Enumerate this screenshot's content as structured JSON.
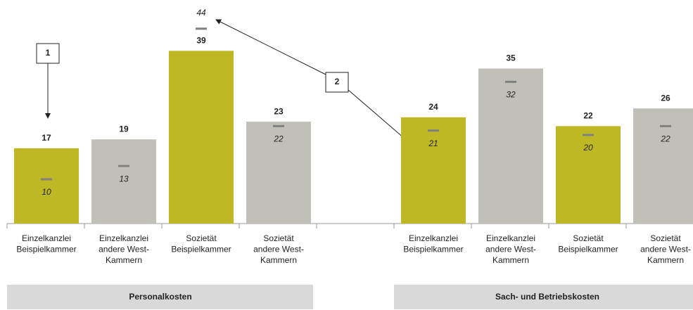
{
  "chart_data": {
    "type": "bar",
    "ylim": [
      0,
      50
    ],
    "colors": [
      "#bfb825",
      "#c0bfb8"
    ],
    "marker_color": "#808080",
    "groups": [
      {
        "name": "Personalkosten",
        "categories": [
          [
            "Einzelkanzlei",
            "Beispielkammer"
          ],
          [
            "Einzelkanzlei",
            "andere West-",
            "Kammern"
          ],
          [
            "Sozietät",
            "Beispielkammer"
          ],
          [
            "Sozietät",
            "andere West-",
            "Kammern"
          ]
        ],
        "values": [
          17,
          19,
          39,
          23
        ],
        "markers": [
          10,
          13,
          44,
          22
        ]
      },
      {
        "name": "Sach- und Betriebskosten",
        "categories": [
          [
            "Einzelkanzlei",
            "Beispielkammer"
          ],
          [
            "Einzelkanzlei",
            "andere West-",
            "Kammern"
          ],
          [
            "Sozietät",
            "Beispielkammer"
          ],
          [
            "Sozietät",
            "andere West-",
            "Kammern"
          ]
        ],
        "values": [
          24,
          35,
          22,
          26
        ],
        "markers": [
          21,
          32,
          20,
          22
        ]
      }
    ],
    "annotations": [
      "1",
      "2"
    ]
  }
}
